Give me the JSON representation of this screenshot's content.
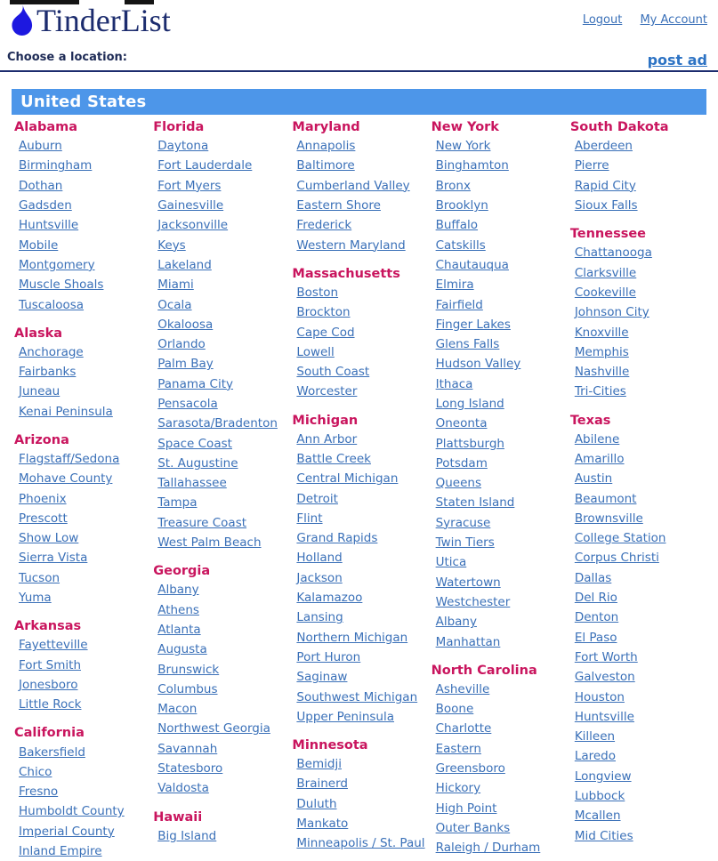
{
  "header": {
    "logo_text": "TinderList",
    "nav": {
      "logout": "Logout",
      "my_account": "My Account"
    },
    "choose_label": "Choose a location:",
    "post_ad": "post ad"
  },
  "banner": {
    "title": "United States"
  },
  "columns": [
    {
      "states": [
        {
          "name": "Alabama",
          "cities": [
            "Auburn",
            "Birmingham",
            "Dothan",
            "Gadsden",
            "Huntsville",
            "Mobile",
            "Montgomery",
            "Muscle Shoals",
            "Tuscaloosa"
          ]
        },
        {
          "name": "Alaska",
          "cities": [
            "Anchorage",
            "Fairbanks",
            "Juneau",
            "Kenai Peninsula"
          ]
        },
        {
          "name": "Arizona",
          "cities": [
            "Flagstaff/Sedona",
            "Mohave County",
            "Phoenix",
            "Prescott",
            "Show Low",
            "Sierra Vista",
            "Tucson",
            "Yuma"
          ]
        },
        {
          "name": "Arkansas",
          "cities": [
            "Fayetteville",
            "Fort Smith",
            "Jonesboro",
            "Little Rock"
          ]
        },
        {
          "name": "California",
          "cities": [
            "Bakersfield",
            "Chico",
            "Fresno",
            "Humboldt County",
            "Imperial County",
            "Inland Empire"
          ]
        }
      ]
    },
    {
      "states": [
        {
          "name": "Florida",
          "cities": [
            "Daytona",
            "Fort Lauderdale",
            "Fort Myers",
            "Gainesville",
            "Jacksonville",
            "Keys",
            "Lakeland",
            "Miami",
            "Ocala",
            "Okaloosa",
            "Orlando",
            "Palm Bay",
            "Panama City",
            "Pensacola",
            "Sarasota/Bradenton",
            "Space Coast",
            "St. Augustine",
            "Tallahassee",
            "Tampa",
            "Treasure Coast",
            "West Palm Beach"
          ]
        },
        {
          "name": "Georgia",
          "cities": [
            "Albany",
            "Athens",
            "Atlanta",
            "Augusta",
            "Brunswick",
            "Columbus",
            "Macon",
            "Northwest Georgia",
            "Savannah",
            "Statesboro",
            "Valdosta"
          ]
        },
        {
          "name": "Hawaii",
          "cities": [
            "Big Island"
          ]
        }
      ]
    },
    {
      "states": [
        {
          "name": "Maryland",
          "cities": [
            "Annapolis",
            "Baltimore",
            "Cumberland Valley",
            "Eastern Shore",
            "Frederick",
            "Western Maryland"
          ]
        },
        {
          "name": "Massachusetts",
          "cities": [
            "Boston",
            "Brockton",
            "Cape Cod",
            "Lowell",
            "South Coast",
            "Worcester"
          ]
        },
        {
          "name": "Michigan",
          "cities": [
            "Ann Arbor",
            "Battle Creek",
            "Central Michigan",
            "Detroit",
            "Flint",
            "Grand Rapids",
            "Holland",
            "Jackson",
            "Kalamazoo",
            "Lansing",
            "Northern Michigan",
            "Port Huron",
            "Saginaw",
            "Southwest Michigan",
            "Upper Peninsula"
          ]
        },
        {
          "name": "Minnesota",
          "cities": [
            "Bemidji",
            "Brainerd",
            "Duluth",
            "Mankato",
            "Minneapolis / St. Paul"
          ]
        }
      ]
    },
    {
      "states": [
        {
          "name": "New York",
          "cities": [
            "New York",
            "Binghamton",
            "Bronx",
            "Brooklyn",
            "Buffalo",
            "Catskills",
            "Chautauqua",
            "Elmira",
            "Fairfield",
            "Finger Lakes",
            "Glens Falls",
            "Hudson Valley",
            "Ithaca",
            "Long Island",
            "Oneonta",
            "Plattsburgh",
            "Potsdam",
            "Queens",
            "Staten Island",
            "Syracuse",
            "Twin Tiers",
            "Utica",
            "Watertown",
            "Westchester",
            "Albany",
            "Manhattan"
          ]
        },
        {
          "name": "North Carolina",
          "cities": [
            "Asheville",
            "Boone",
            "Charlotte",
            "Eastern",
            "Greensboro",
            "Hickory",
            "High Point",
            "Outer Banks",
            "Raleigh / Durham"
          ]
        }
      ]
    },
    {
      "states": [
        {
          "name": "South Dakota",
          "cities": [
            "Aberdeen",
            "Pierre",
            "Rapid City",
            "Sioux Falls"
          ]
        },
        {
          "name": "Tennessee",
          "cities": [
            "Chattanooga",
            "Clarksville",
            "Cookeville",
            "Johnson City",
            "Knoxville",
            "Memphis",
            "Nashville",
            "Tri-Cities"
          ]
        },
        {
          "name": "Texas",
          "cities": [
            "Abilene",
            "Amarillo",
            "Austin",
            "Beaumont",
            "Brownsville",
            "College Station",
            "Corpus Christi",
            "Dallas",
            "Del Rio",
            "Denton",
            "El Paso",
            "Fort Worth",
            "Galveston",
            "Houston",
            "Huntsville",
            "Killeen",
            "Laredo",
            "Longview",
            "Lubbock",
            "Mcallen",
            "Mid Cities"
          ]
        }
      ]
    }
  ],
  "colors": {
    "banner_bg": "#4d96e9",
    "banner_text": "#ffffff",
    "state_header": "#c9155e",
    "city_link": "#3a70b8",
    "nav_link": "#3a70b8",
    "post_ad": "#2d73c4",
    "logo_text": "#1c2c6e",
    "rule": "#1c2c6e",
    "flame": "#1d18e0",
    "choose_label": "#1e2b56"
  }
}
